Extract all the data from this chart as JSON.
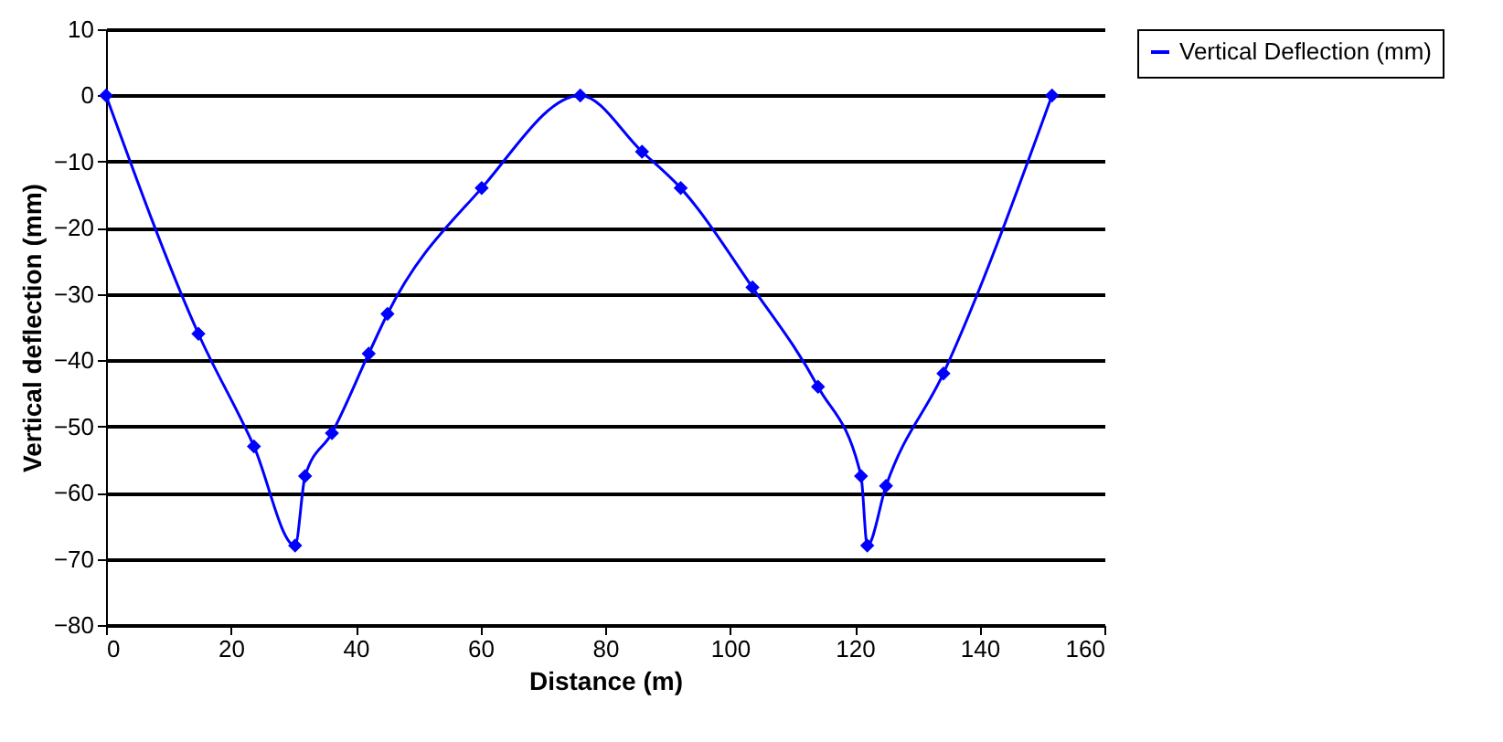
{
  "chart_data": {
    "type": "line",
    "xlabel": "Distance (m)",
    "ylabel": "Vertical deflection (mm)",
    "x": [
      0,
      14.8,
      23.7,
      30.3,
      31.9,
      36.2,
      42.1,
      45.1,
      60.2,
      76,
      85.9,
      92.1,
      103.6,
      114.1,
      121,
      122,
      125,
      134.2,
      151.6
    ],
    "series": [
      {
        "name": "Vertical Deflection (mm)",
        "color": "#0000ff",
        "values": [
          0,
          -36,
          -53,
          -68,
          -57.5,
          -51,
          -39,
          -33,
          -14,
          0,
          -8.5,
          -14,
          -29,
          -44,
          -57.5,
          -68,
          -59,
          -42,
          0
        ]
      }
    ],
    "xlim": [
      0,
      160
    ],
    "xticks": [
      0,
      20,
      40,
      60,
      80,
      100,
      120,
      140,
      160
    ],
    "ylim": [
      -80,
      10
    ],
    "yticks": [
      -80,
      -70,
      -60,
      -50,
      -40,
      -30,
      -20,
      -10,
      0,
      10
    ],
    "grid": "y",
    "legend": "right",
    "marker": "diamond",
    "line_style": "solid"
  }
}
